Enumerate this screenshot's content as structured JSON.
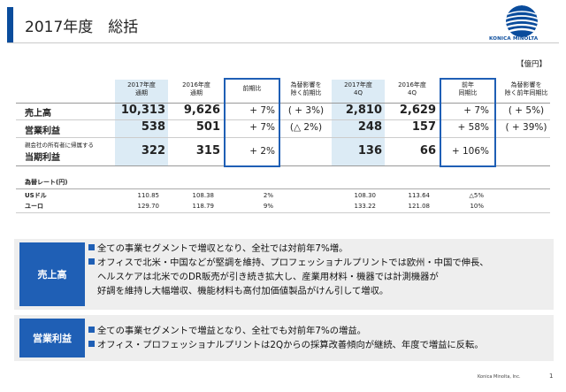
{
  "header": {
    "title": "2017年度　総括",
    "logo_text": "KONICA MINOLTA"
  },
  "unit": "【億円】",
  "columns": [
    {
      "l1": "2017年度",
      "l2": "通期"
    },
    {
      "l1": "2016年度",
      "l2": "通期"
    },
    {
      "l1": "前期比",
      "l2": ""
    },
    {
      "l1": "為替影響を",
      "l2": "除く前期比"
    },
    {
      "l1": "2017年度",
      "l2": "4Q"
    },
    {
      "l1": "2016年度",
      "l2": "4Q"
    },
    {
      "l1": "前年",
      "l2": "同期比"
    },
    {
      "l1": "為替影響を",
      "l2": "除く前年同期比"
    }
  ],
  "rows": [
    {
      "label": "売上高",
      "fy17": "10,313",
      "fy16": "9,626",
      "yoy": "+ 7%",
      "yoy_fx": "( + 3%)",
      "q17": "2,810",
      "q16": "2,629",
      "qyoy": "+ 7%",
      "qyoy_fx": "( + 5%)"
    },
    {
      "label": "営業利益",
      "fy17": "538",
      "fy16": "501",
      "yoy": "+ 7%",
      "yoy_fx": "(△ 2%)",
      "q17": "248",
      "q16": "157",
      "qyoy": "+ 58%",
      "qyoy_fx": "( + 39%)"
    },
    {
      "label_small": "親会社の所有者に帰属する",
      "label": "当期利益",
      "fy17": "322",
      "fy16": "315",
      "yoy": "+ 2%",
      "yoy_fx": "",
      "q17": "136",
      "q16": "66",
      "qyoy": "+ 106%",
      "qyoy_fx": ""
    }
  ],
  "fx": {
    "title": "為替レート(円)",
    "rows": [
      {
        "label": "USドル",
        "fy17": "110.85",
        "fy16": "108.38",
        "yoy": "2%",
        "q17": "108.30",
        "q16": "113.64",
        "qyoy": "△5%"
      },
      {
        "label": "ユーロ",
        "fy17": "129.70",
        "fy16": "118.79",
        "yoy": "9%",
        "q17": "133.22",
        "q16": "121.08",
        "qyoy": "10%"
      }
    ]
  },
  "summary": [
    {
      "label": "売上高",
      "bullets": [
        {
          "lines": [
            "全ての事業セグメントで増収となり、全社では対前年7%増。"
          ]
        },
        {
          "lines": [
            "オフィスで北米・中国などが堅調を維持、プロフェッショナルプリントでは欧州・中国で伸長、",
            "ヘルスケアは北米でのDR販売が引き続き拡大し、産業用材料・機器では計測機器が",
            "好調を維持し大幅増収、機能材料も高付加価値製品がけん引して増収。"
          ]
        }
      ]
    },
    {
      "label": "営業利益",
      "bullets": [
        {
          "lines": [
            "全ての事業セグメントで増益となり、全社でも対前年7%の増益。"
          ]
        },
        {
          "lines": [
            "オフィス・プロフェッショナルプリントは2Qからの採算改善傾向が継続、年度で増益に反転。"
          ]
        }
      ]
    }
  ],
  "footer": {
    "company": "Konica Minolta, Inc.",
    "page": "1"
  }
}
